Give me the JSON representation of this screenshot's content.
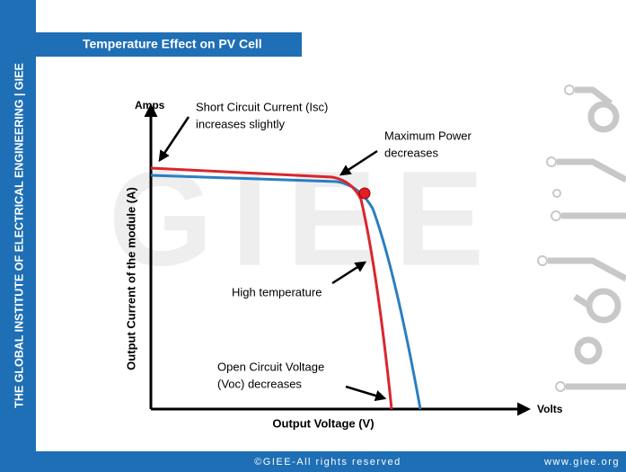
{
  "side_banner": "THE GLOBAL INSTITUTE OF ELECTRICAL ENGINEERING | GIEE",
  "title": "Temperature Effect on PV Cell",
  "watermark": "GIEE",
  "axes": {
    "y_unit": "Amps",
    "y_title": "Output Current of  the module (A)",
    "x_unit": "Volts",
    "x_title": "Output Voltage (V)"
  },
  "annotations": {
    "short_circuit": [
      "Short Circuit Current (Isc)",
      "increases slightly"
    ],
    "max_power": [
      "Maximum Power",
      "decreases"
    ],
    "high_temp": "High temperature",
    "open_circuit": [
      "Open Circuit Voltage",
      "(Voc) decreases"
    ]
  },
  "footer": {
    "copyright": "©GIEE-All rights reserved",
    "website": "www.giee.org"
  }
}
